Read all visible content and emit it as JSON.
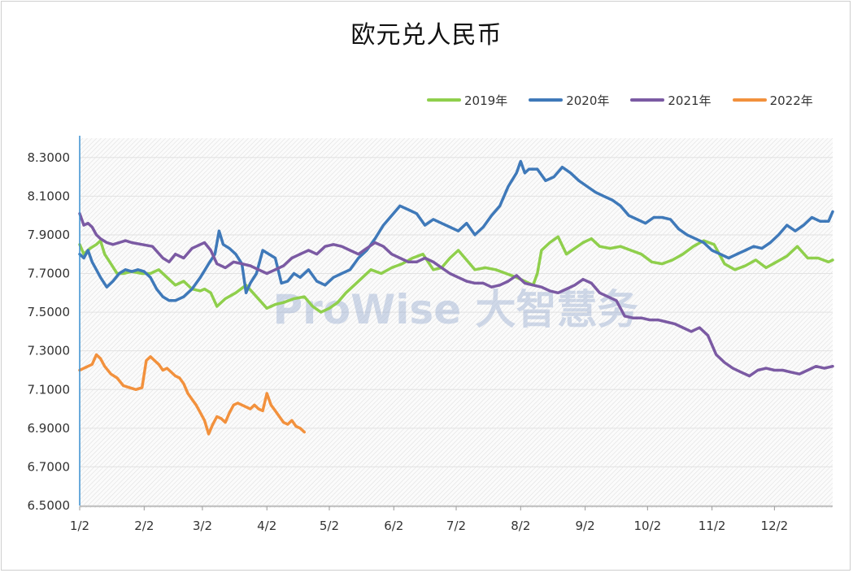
{
  "chart_data": {
    "type": "line",
    "title": "欧元兑人民币",
    "ylim": [
      6.5,
      8.4
    ],
    "y_ticks": [
      "8.3000",
      "8.1000",
      "7.9000",
      "7.7000",
      "7.5000",
      "7.3000",
      "7.1000",
      "6.9000",
      "6.7000",
      "6.5000"
    ],
    "y_tick_values": [
      8.3,
      8.1,
      7.9,
      7.7,
      7.5,
      7.3,
      7.1,
      6.9,
      6.7,
      6.5
    ],
    "x_ticks": [
      "1/2",
      "2/2",
      "3/2",
      "4/2",
      "5/2",
      "6/2",
      "7/2",
      "8/2",
      "9/2",
      "10/2",
      "11/2",
      "12/2"
    ],
    "x_tick_days": [
      0,
      31,
      59,
      90,
      120,
      151,
      181,
      212,
      243,
      273,
      304,
      334
    ],
    "xlim_days": [
      0,
      362
    ],
    "grid": "horizontal",
    "legend_position": "top-right",
    "watermark": "ProWise 大智慧务",
    "series": [
      {
        "name": "2019年",
        "color": "#8fcf4c",
        "x": [
          0,
          2,
          5,
          8,
          10,
          12,
          15,
          18,
          21,
          25,
          30,
          34,
          38,
          42,
          46,
          50,
          54,
          58,
          60,
          63,
          66,
          70,
          75,
          80,
          85,
          90,
          94,
          98,
          103,
          108,
          112,
          116,
          120,
          124,
          128,
          132,
          136,
          140,
          145,
          150,
          155,
          160,
          165,
          170,
          174,
          178,
          182,
          186,
          190,
          195,
          200,
          205,
          210,
          214,
          218,
          220,
          222,
          226,
          230,
          234,
          238,
          242,
          246,
          250,
          255,
          260,
          265,
          270,
          275,
          280,
          285,
          290,
          295,
          300,
          305,
          310,
          315,
          320,
          325,
          330,
          335,
          340,
          345,
          350,
          355,
          360,
          362
        ],
        "values": [
          7.85,
          7.8,
          7.83,
          7.85,
          7.87,
          7.8,
          7.75,
          7.7,
          7.7,
          7.71,
          7.7,
          7.7,
          7.72,
          7.68,
          7.64,
          7.66,
          7.62,
          7.61,
          7.62,
          7.6,
          7.53,
          7.57,
          7.6,
          7.64,
          7.58,
          7.52,
          7.54,
          7.55,
          7.57,
          7.58,
          7.53,
          7.5,
          7.52,
          7.55,
          7.6,
          7.64,
          7.68,
          7.72,
          7.7,
          7.73,
          7.75,
          7.78,
          7.8,
          7.72,
          7.73,
          7.78,
          7.82,
          7.77,
          7.72,
          7.73,
          7.72,
          7.7,
          7.68,
          7.66,
          7.64,
          7.7,
          7.82,
          7.86,
          7.89,
          7.8,
          7.83,
          7.86,
          7.88,
          7.84,
          7.83,
          7.84,
          7.82,
          7.8,
          7.76,
          7.75,
          7.77,
          7.8,
          7.84,
          7.87,
          7.85,
          7.75,
          7.72,
          7.74,
          7.77,
          7.73,
          7.76,
          7.79,
          7.84,
          7.78,
          7.78,
          7.76,
          7.77
        ]
      },
      {
        "name": "2020年",
        "color": "#3f79b9",
        "x": [
          0,
          2,
          4,
          6,
          8,
          10,
          13,
          16,
          19,
          22,
          25,
          28,
          31,
          34,
          37,
          40,
          43,
          46,
          50,
          54,
          58,
          62,
          65,
          67,
          69,
          72,
          75,
          78,
          80,
          82,
          85,
          88,
          91,
          94,
          97,
          100,
          103,
          106,
          110,
          114,
          118,
          122,
          126,
          130,
          134,
          138,
          142,
          146,
          150,
          154,
          158,
          162,
          166,
          170,
          174,
          178,
          182,
          186,
          190,
          194,
          198,
          202,
          206,
          210,
          212,
          214,
          216,
          220,
          224,
          228,
          232,
          236,
          240,
          244,
          248,
          252,
          256,
          260,
          264,
          268,
          272,
          276,
          280,
          284,
          288,
          292,
          296,
          300,
          304,
          308,
          312,
          316,
          320,
          324,
          328,
          332,
          336,
          340,
          344,
          348,
          352,
          356,
          360,
          362
        ],
        "values": [
          7.8,
          7.78,
          7.82,
          7.76,
          7.72,
          7.68,
          7.63,
          7.66,
          7.7,
          7.72,
          7.71,
          7.72,
          7.71,
          7.68,
          7.62,
          7.58,
          7.56,
          7.56,
          7.58,
          7.62,
          7.68,
          7.75,
          7.8,
          7.92,
          7.85,
          7.83,
          7.8,
          7.75,
          7.6,
          7.65,
          7.7,
          7.82,
          7.8,
          7.78,
          7.65,
          7.66,
          7.7,
          7.68,
          7.72,
          7.66,
          7.64,
          7.68,
          7.7,
          7.72,
          7.78,
          7.82,
          7.88,
          7.95,
          8.0,
          8.05,
          8.03,
          8.01,
          7.95,
          7.98,
          7.96,
          7.94,
          7.92,
          7.96,
          7.9,
          7.94,
          8.0,
          8.05,
          8.15,
          8.22,
          8.28,
          8.22,
          8.24,
          8.24,
          8.18,
          8.2,
          8.25,
          8.22,
          8.18,
          8.15,
          8.12,
          8.1,
          8.08,
          8.05,
          8.0,
          7.98,
          7.96,
          7.99,
          7.99,
          7.98,
          7.93,
          7.9,
          7.88,
          7.86,
          7.82,
          7.8,
          7.78,
          7.8,
          7.82,
          7.84,
          7.83,
          7.86,
          7.9,
          7.95,
          7.92,
          7.95,
          7.99,
          7.97,
          7.97,
          8.02
        ]
      },
      {
        "name": "2021年",
        "color": "#7b5aa3",
        "x": [
          0,
          2,
          4,
          6,
          8,
          10,
          13,
          16,
          19,
          22,
          25,
          30,
          35,
          40,
          43,
          46,
          50,
          54,
          58,
          60,
          63,
          66,
          70,
          74,
          78,
          82,
          86,
          90,
          94,
          98,
          102,
          106,
          110,
          114,
          118,
          122,
          126,
          130,
          134,
          138,
          142,
          146,
          150,
          154,
          158,
          162,
          166,
          170,
          174,
          178,
          182,
          186,
          190,
          194,
          198,
          202,
          206,
          210,
          214,
          218,
          222,
          226,
          230,
          234,
          238,
          242,
          246,
          250,
          254,
          258,
          262,
          266,
          270,
          274,
          278,
          282,
          286,
          290,
          294,
          298,
          302,
          306,
          310,
          314,
          318,
          322,
          326,
          330,
          334,
          338,
          342,
          346,
          350,
          354,
          358,
          362
        ],
        "values": [
          8.01,
          7.95,
          7.96,
          7.94,
          7.9,
          7.88,
          7.86,
          7.85,
          7.86,
          7.87,
          7.86,
          7.85,
          7.84,
          7.78,
          7.76,
          7.8,
          7.78,
          7.83,
          7.85,
          7.86,
          7.82,
          7.75,
          7.73,
          7.76,
          7.75,
          7.74,
          7.72,
          7.7,
          7.72,
          7.74,
          7.78,
          7.8,
          7.82,
          7.8,
          7.84,
          7.85,
          7.84,
          7.82,
          7.8,
          7.83,
          7.86,
          7.84,
          7.8,
          7.78,
          7.76,
          7.76,
          7.78,
          7.76,
          7.73,
          7.7,
          7.68,
          7.66,
          7.65,
          7.65,
          7.63,
          7.64,
          7.66,
          7.69,
          7.65,
          7.64,
          7.63,
          7.61,
          7.6,
          7.62,
          7.64,
          7.67,
          7.65,
          7.6,
          7.58,
          7.56,
          7.48,
          7.47,
          7.47,
          7.46,
          7.46,
          7.45,
          7.44,
          7.42,
          7.4,
          7.42,
          7.38,
          7.28,
          7.24,
          7.21,
          7.19,
          7.17,
          7.2,
          7.21,
          7.2,
          7.2,
          7.19,
          7.18,
          7.2,
          7.22,
          7.21,
          7.22
        ]
      },
      {
        "name": "2022年",
        "color": "#f2913d",
        "x": [
          0,
          2,
          4,
          6,
          8,
          10,
          12,
          15,
          18,
          21,
          24,
          27,
          30,
          32,
          34,
          36,
          38,
          40,
          42,
          44,
          46,
          48,
          50,
          52,
          54,
          56,
          58,
          60,
          62,
          64,
          66,
          68,
          70,
          72,
          74,
          76,
          78,
          80,
          82,
          84,
          86,
          88,
          90,
          92,
          94,
          96,
          98,
          100,
          102,
          104,
          106,
          108
        ],
        "values": [
          7.2,
          7.21,
          7.22,
          7.23,
          7.28,
          7.26,
          7.22,
          7.18,
          7.16,
          7.12,
          7.11,
          7.1,
          7.11,
          7.25,
          7.27,
          7.25,
          7.23,
          7.2,
          7.21,
          7.19,
          7.17,
          7.16,
          7.13,
          7.08,
          7.05,
          7.02,
          6.98,
          6.94,
          6.87,
          6.92,
          6.96,
          6.95,
          6.93,
          6.98,
          7.02,
          7.03,
          7.02,
          7.01,
          7.0,
          7.02,
          7.0,
          6.99,
          7.08,
          7.02,
          6.99,
          6.96,
          6.93,
          6.92,
          6.94,
          6.91,
          6.9,
          6.88
        ]
      }
    ]
  }
}
